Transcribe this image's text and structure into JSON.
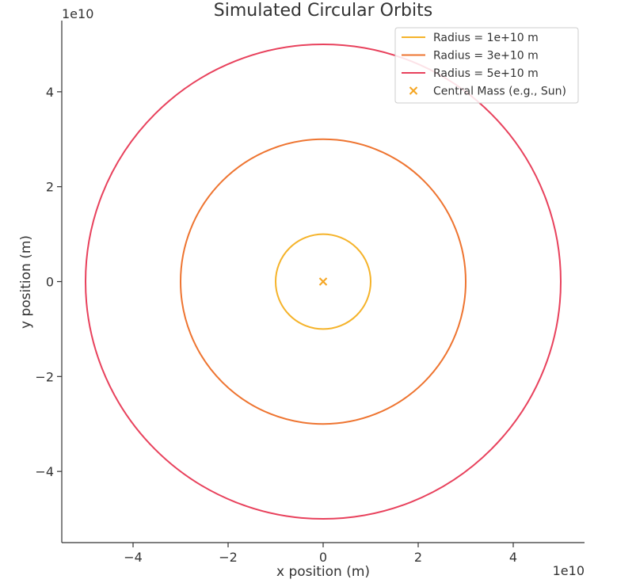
{
  "chart_data": {
    "type": "line",
    "title": "Simulated Circular Orbits",
    "xlabel": "x position (m)",
    "ylabel": "y position (m)",
    "x_offset_label": "1e10",
    "y_offset_label": "1e10",
    "xlim": [
      -5.5,
      5.5
    ],
    "ylim": [
      -5.5,
      5.5
    ],
    "x_ticks": [
      -4,
      -2,
      0,
      2,
      4
    ],
    "y_ticks": [
      -4,
      -2,
      0,
      2,
      4
    ],
    "x_tick_labels": [
      "−4",
      "−2",
      "0",
      "2",
      "4"
    ],
    "y_tick_labels": [
      "−4",
      "−2",
      "0",
      "2",
      "4"
    ],
    "grid": false,
    "legend_position": "top-right",
    "series": [
      {
        "name": "Radius = 1e+10 m",
        "radius": 10000000000.0,
        "color": "#f5b32a",
        "kind": "orbit"
      },
      {
        "name": "Radius = 3e+10 m",
        "radius": 30000000000.0,
        "color": "#ee7430",
        "kind": "orbit"
      },
      {
        "name": "Radius = 5e+10 m",
        "radius": 50000000000.0,
        "color": "#e8415c",
        "kind": "orbit"
      },
      {
        "name": "Central Mass (e.g., Sun)",
        "x": 0,
        "y": 0,
        "color": "#f5a623",
        "kind": "marker",
        "marker": "x"
      }
    ]
  }
}
